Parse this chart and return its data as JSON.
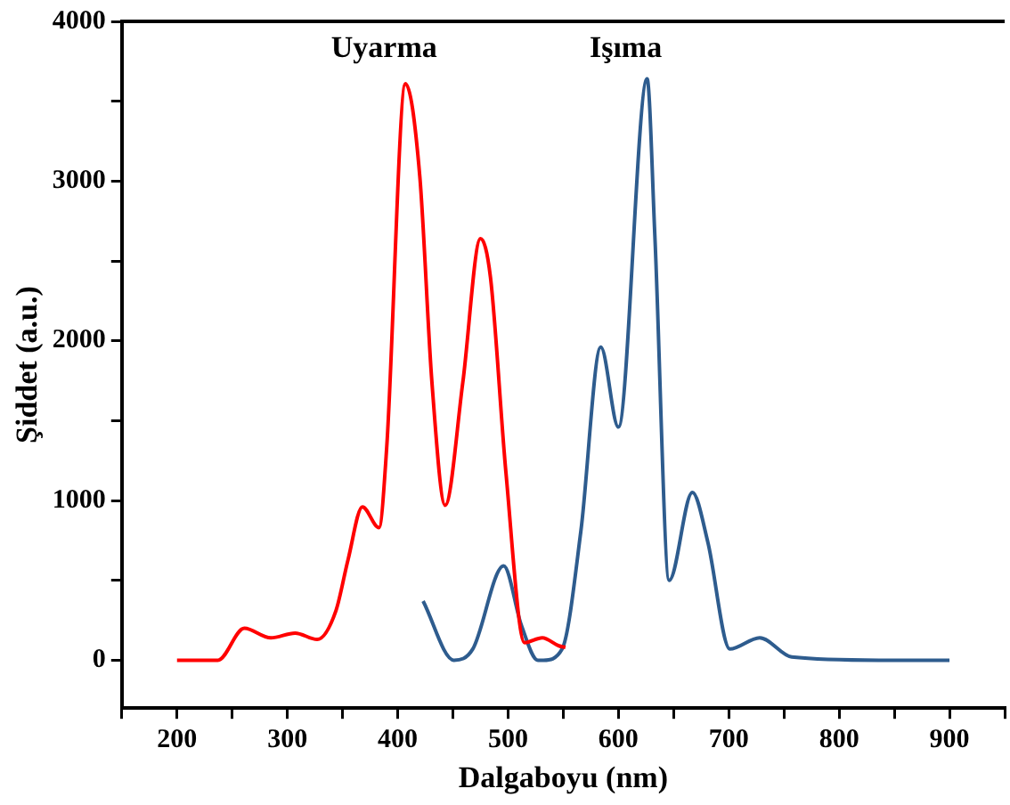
{
  "chart_data": {
    "type": "line",
    "xlabel": "Dalgaboyu (nm)",
    "ylabel": "Şiddet (a.u.)",
    "xlim": [
      150,
      950
    ],
    "ylim": [
      -300,
      4000
    ],
    "xticks": [
      {
        "value": 150,
        "label": null
      },
      200,
      {
        "value": 250,
        "label": null
      },
      300,
      {
        "value": 350,
        "label": null
      },
      400,
      {
        "value": 450,
        "label": null
      },
      500,
      {
        "value": 550,
        "label": null
      },
      600,
      {
        "value": 650,
        "label": null
      },
      700,
      {
        "value": 750,
        "label": null
      },
      800,
      {
        "value": 850,
        "label": null
      },
      900,
      {
        "value": 950,
        "label": null
      }
    ],
    "yticks": [
      0,
      {
        "value": 500,
        "label": null
      },
      1000,
      {
        "value": 1500,
        "label": null
      },
      2000,
      {
        "value": 2500,
        "label": null
      },
      3000,
      {
        "value": 3500,
        "label": null
      },
      4000
    ],
    "grid": false,
    "legend": false,
    "marker": "none",
    "line_style": "solid",
    "series": [
      {
        "name": "Uyarma",
        "color": "#ff0000",
        "x": [
          200,
          237,
          261,
          285,
          307,
          327,
          344,
          355,
          368,
          383,
          390,
          407,
          420,
          431,
          443,
          459,
          475,
          484,
          498,
          515,
          531,
          546,
          552
        ],
        "values": [
          0,
          0,
          200,
          140,
          170,
          130,
          310,
          630,
          960,
          830,
          1330,
          3610,
          3030,
          1740,
          970,
          1740,
          2640,
          2400,
          1180,
          110,
          140,
          90,
          80
        ]
      },
      {
        "name": "Işıma",
        "color": "#2e5c8e",
        "x": [
          423,
          451,
          468,
          496,
          512,
          527,
          532,
          549,
          566,
          584,
          600,
          626,
          633,
          646,
          667,
          681,
          701,
          728,
          757,
          836,
          900
        ],
        "values": [
          370,
          0,
          70,
          590,
          220,
          0,
          0,
          70,
          810,
          1960,
          1460,
          3640,
          2660,
          500,
          1050,
          740,
          70,
          140,
          20,
          0,
          0
        ]
      }
    ]
  }
}
